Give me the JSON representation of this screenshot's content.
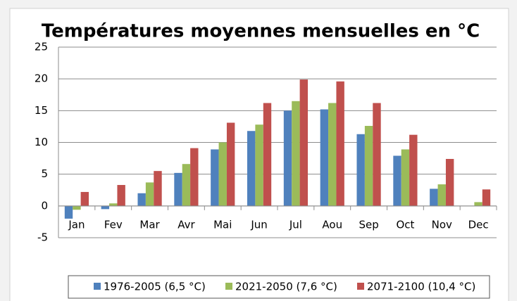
{
  "chart_data": {
    "type": "bar",
    "title": "Températures moyennes mensuelles en °C",
    "categories": [
      "Jan",
      "Fev",
      "Mar",
      "Avr",
      "Mai",
      "Jun",
      "Jul",
      "Aou",
      "Sep",
      "Oct",
      "Nov",
      "Dec"
    ],
    "series": [
      {
        "name": "1976-2005 (6,5 °C)",
        "color": "#4f81bd",
        "values": [
          -2.0,
          -0.5,
          2.0,
          5.2,
          8.9,
          11.8,
          15.0,
          15.2,
          11.3,
          7.9,
          2.7,
          0.0
        ]
      },
      {
        "name": "2021-2050 (7,6 °C)",
        "color": "#9bbb59",
        "values": [
          -0.6,
          0.4,
          3.7,
          6.6,
          10.0,
          12.8,
          16.5,
          16.2,
          12.6,
          8.9,
          3.4,
          0.6
        ]
      },
      {
        "name": "2071-2100 (10,4 °C)",
        "color": "#c0504d",
        "values": [
          2.2,
          3.3,
          5.5,
          9.1,
          13.1,
          16.2,
          19.9,
          19.6,
          16.2,
          11.2,
          7.4,
          2.6
        ]
      }
    ],
    "ylim": [
      -5,
      25
    ],
    "yticks": [
      -5,
      0,
      5,
      10,
      15,
      20,
      25
    ],
    "grid": true,
    "legend": "bottom"
  }
}
